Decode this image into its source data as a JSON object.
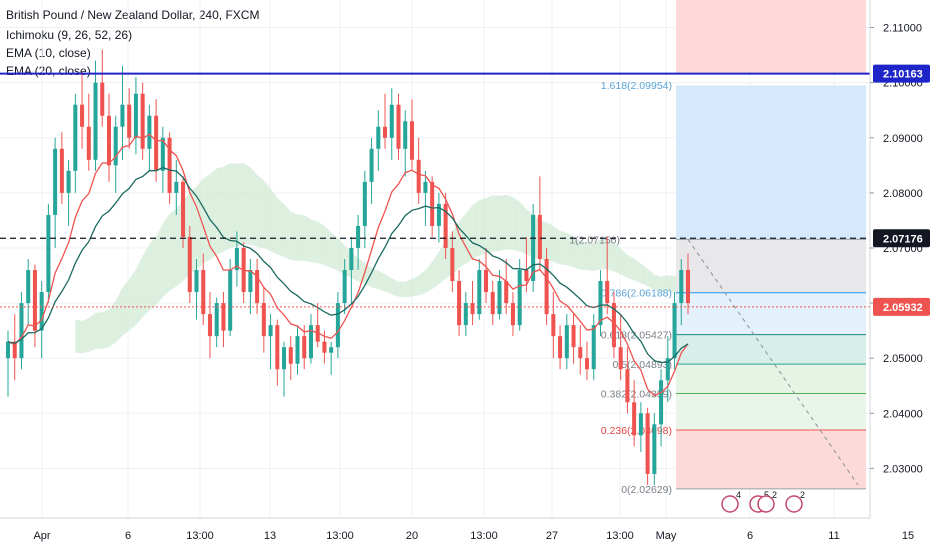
{
  "header": {
    "title": "British Pound / New Zealand Dollar, 240, FXCM",
    "indicators": [
      "Ichimoku (9, 26, 52, 26)",
      "EMA (10, close)",
      "EMA (20, close)"
    ]
  },
  "colors": {
    "up": "#26a69a",
    "down": "#ef5350",
    "ema10": "#ef5350",
    "ema20": "#1b6a60",
    "kumo_green": "#cfead3",
    "kumo_red": "#fbd3d3",
    "hline_blue": "#1e25c8",
    "badge_dark": "#131722",
    "badge_red": "#ef5350",
    "fib_text_blue": "#5aa3d6",
    "fib_text_red": "#e04646"
  },
  "chart_data": {
    "type": "candlestick",
    "price_range": [
      2.021,
      2.115
    ],
    "y_ticks": [
      "2.11000",
      "2.10000",
      "2.09000",
      "2.08000",
      "2.07000",
      "2.06000",
      "2.05000",
      "2.04000",
      "2.03000"
    ],
    "x_ticks": [
      "Apr",
      "6",
      "13:00",
      "13",
      "13:00",
      "20",
      "13:00",
      "27",
      "13:00",
      "May",
      "6",
      "11",
      "15"
    ],
    "price_labels": [
      {
        "value": 2.10163,
        "label": "2.10163",
        "style": "blue"
      },
      {
        "value": 2.07176,
        "label": "2.07176",
        "style": "dark"
      },
      {
        "value": 2.05932,
        "label": "2.05932",
        "style": "red"
      }
    ],
    "fib_levels": [
      {
        "ratio": "1",
        "price": 2.07156,
        "label": "1(2.07156)"
      },
      {
        "ratio": "0.786",
        "price": 2.06188,
        "label": "0.786(2.06188)"
      },
      {
        "ratio": "0.618",
        "price": 2.05427,
        "label": "0.618(2.05427)"
      },
      {
        "ratio": "0.5",
        "price": 2.04893,
        "label": "0.5(2.04893)"
      },
      {
        "ratio": "0.382",
        "price": 2.04359,
        "label": "0.382(2.04359)"
      },
      {
        "ratio": "0.236",
        "price": 2.03698,
        "label": "0.236(2.03698)"
      },
      {
        "ratio": "0",
        "price": 2.02629,
        "label": "0(2.02629)"
      },
      {
        "ratio": "1.618",
        "price": 2.09954,
        "label": "1.618(2.09954)"
      }
    ],
    "candles": [
      [
        2.05,
        2.055,
        2.043,
        2.053
      ],
      [
        2.053,
        2.058,
        2.046,
        2.05
      ],
      [
        2.05,
        2.062,
        2.048,
        2.06
      ],
      [
        2.06,
        2.068,
        2.056,
        2.066
      ],
      [
        2.066,
        2.067,
        2.052,
        2.055
      ],
      [
        2.055,
        2.064,
        2.05,
        2.062
      ],
      [
        2.062,
        2.078,
        2.06,
        2.076
      ],
      [
        2.076,
        2.09,
        2.07,
        2.088
      ],
      [
        2.088,
        2.091,
        2.078,
        2.08
      ],
      [
        2.08,
        2.086,
        2.074,
        2.084
      ],
      [
        2.084,
        2.098,
        2.08,
        2.096
      ],
      [
        2.096,
        2.102,
        2.088,
        2.092
      ],
      [
        2.092,
        2.098,
        2.084,
        2.086
      ],
      [
        2.086,
        2.104,
        2.084,
        2.1
      ],
      [
        2.1,
        2.106,
        2.092,
        2.094
      ],
      [
        2.094,
        2.098,
        2.082,
        2.085
      ],
      [
        2.085,
        2.094,
        2.08,
        2.092
      ],
      [
        2.092,
        2.103,
        2.086,
        2.096
      ],
      [
        2.096,
        2.099,
        2.088,
        2.09
      ],
      [
        2.09,
        2.101,
        2.087,
        2.098
      ],
      [
        2.098,
        2.1,
        2.086,
        2.088
      ],
      [
        2.088,
        2.096,
        2.084,
        2.094
      ],
      [
        2.094,
        2.097,
        2.082,
        2.084
      ],
      [
        2.084,
        2.092,
        2.08,
        2.09
      ],
      [
        2.09,
        2.091,
        2.078,
        2.08
      ],
      [
        2.08,
        2.086,
        2.076,
        2.082
      ],
      [
        2.082,
        2.083,
        2.07,
        2.072
      ],
      [
        2.072,
        2.074,
        2.06,
        2.062
      ],
      [
        2.062,
        2.068,
        2.057,
        2.066
      ],
      [
        2.066,
        2.069,
        2.056,
        2.058
      ],
      [
        2.058,
        2.062,
        2.05,
        2.054
      ],
      [
        2.054,
        2.061,
        2.052,
        2.06
      ],
      [
        2.06,
        2.062,
        2.052,
        2.055
      ],
      [
        2.055,
        2.068,
        2.054,
        2.066
      ],
      [
        2.066,
        2.073,
        2.063,
        2.07
      ],
      [
        2.07,
        2.071,
        2.06,
        2.062
      ],
      [
        2.062,
        2.068,
        2.058,
        2.066
      ],
      [
        2.066,
        2.068,
        2.058,
        2.06
      ],
      [
        2.06,
        2.063,
        2.051,
        2.054
      ],
      [
        2.054,
        2.058,
        2.048,
        2.056
      ],
      [
        2.056,
        2.057,
        2.045,
        2.048
      ],
      [
        2.048,
        2.053,
        2.043,
        2.052
      ],
      [
        2.052,
        2.054,
        2.046,
        2.049
      ],
      [
        2.049,
        2.056,
        2.047,
        2.054
      ],
      [
        2.054,
        2.056,
        2.048,
        2.05
      ],
      [
        2.05,
        2.058,
        2.049,
        2.056
      ],
      [
        2.056,
        2.06,
        2.052,
        2.053
      ],
      [
        2.053,
        2.055,
        2.049,
        2.051
      ],
      [
        2.051,
        2.053,
        2.047,
        2.052
      ],
      [
        2.052,
        2.062,
        2.05,
        2.06
      ],
      [
        2.06,
        2.068,
        2.058,
        2.066
      ],
      [
        2.066,
        2.072,
        2.06,
        2.07
      ],
      [
        2.07,
        2.076,
        2.066,
        2.074
      ],
      [
        2.074,
        2.084,
        2.07,
        2.082
      ],
      [
        2.082,
        2.09,
        2.078,
        2.088
      ],
      [
        2.088,
        2.095,
        2.084,
        2.092
      ],
      [
        2.092,
        2.098,
        2.088,
        2.09
      ],
      [
        2.09,
        2.099,
        2.086,
        2.096
      ],
      [
        2.096,
        2.098,
        2.086,
        2.088
      ],
      [
        2.088,
        2.095,
        2.083,
        2.093
      ],
      [
        2.093,
        2.097,
        2.084,
        2.086
      ],
      [
        2.086,
        2.09,
        2.078,
        2.08
      ],
      [
        2.08,
        2.084,
        2.074,
        2.082
      ],
      [
        2.082,
        2.083,
        2.072,
        2.074
      ],
      [
        2.074,
        2.08,
        2.071,
        2.078
      ],
      [
        2.078,
        2.08,
        2.068,
        2.07
      ],
      [
        2.07,
        2.073,
        2.062,
        2.064
      ],
      [
        2.064,
        2.066,
        2.054,
        2.056
      ],
      [
        2.056,
        2.062,
        2.054,
        2.06
      ],
      [
        2.06,
        2.064,
        2.056,
        2.058
      ],
      [
        2.058,
        2.068,
        2.057,
        2.066
      ],
      [
        2.066,
        2.07,
        2.06,
        2.062
      ],
      [
        2.062,
        2.064,
        2.056,
        2.058
      ],
      [
        2.058,
        2.066,
        2.057,
        2.064
      ],
      [
        2.064,
        2.068,
        2.058,
        2.06
      ],
      [
        2.06,
        2.062,
        2.054,
        2.056
      ],
      [
        2.056,
        2.068,
        2.055,
        2.066
      ],
      [
        2.066,
        2.072,
        2.062,
        2.064
      ],
      [
        2.064,
        2.078,
        2.062,
        2.076
      ],
      [
        2.076,
        2.083,
        2.066,
        2.068
      ],
      [
        2.068,
        2.07,
        2.056,
        2.058
      ],
      [
        2.058,
        2.062,
        2.05,
        2.054
      ],
      [
        2.054,
        2.056,
        2.048,
        2.05
      ],
      [
        2.05,
        2.058,
        2.048,
        2.056
      ],
      [
        2.056,
        2.058,
        2.049,
        2.052
      ],
      [
        2.052,
        2.056,
        2.047,
        2.05
      ],
      [
        2.05,
        2.053,
        2.046,
        2.048
      ],
      [
        2.048,
        2.058,
        2.046,
        2.056
      ],
      [
        2.056,
        2.066,
        2.054,
        2.064
      ],
      [
        2.064,
        2.072,
        2.058,
        2.06
      ],
      [
        2.06,
        2.062,
        2.05,
        2.052
      ],
      [
        2.052,
        2.058,
        2.046,
        2.048
      ],
      [
        2.048,
        2.052,
        2.04,
        2.042
      ],
      [
        2.042,
        2.046,
        2.034,
        2.036
      ],
      [
        2.036,
        2.042,
        2.033,
        2.04
      ],
      [
        2.04,
        2.041,
        2.027,
        2.029
      ],
      [
        2.029,
        2.04,
        2.027,
        2.038
      ],
      [
        2.038,
        2.048,
        2.034,
        2.046
      ],
      [
        2.046,
        2.054,
        2.042,
        2.05
      ],
      [
        2.05,
        2.062,
        2.048,
        2.06
      ],
      [
        2.06,
        2.068,
        2.056,
        2.066
      ],
      [
        2.066,
        2.069,
        2.058,
        2.06
      ]
    ]
  }
}
